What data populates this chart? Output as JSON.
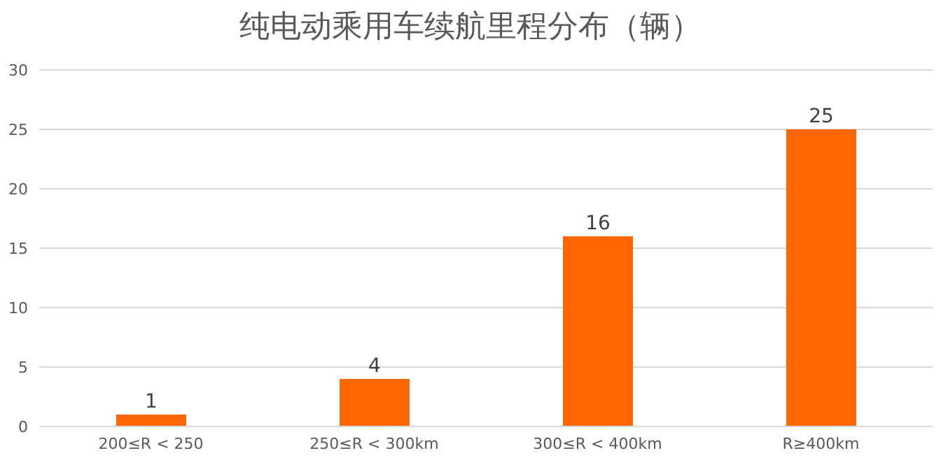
{
  "chart_data": {
    "type": "bar",
    "title": "纯电动乘用车续航里程分布（辆）",
    "categories": [
      "200≤R < 250",
      "250≤R < 300km",
      "300≤R < 400km",
      "R≥400km"
    ],
    "values": [
      1,
      4,
      16,
      25
    ],
    "color": "#ff6600",
    "ylim": [
      0,
      30
    ],
    "yticks": [
      0,
      5,
      10,
      15,
      20,
      25,
      30
    ],
    "grid": "y",
    "data_labels": true
  }
}
